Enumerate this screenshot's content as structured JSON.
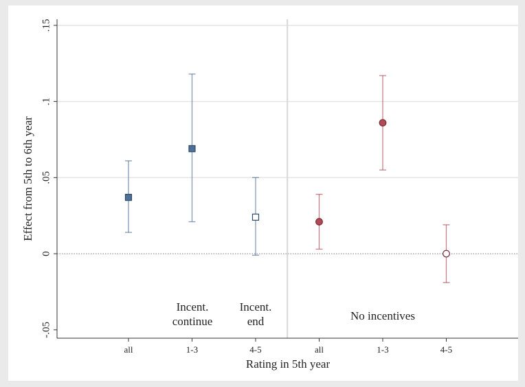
{
  "chart_data": {
    "type": "errorbar",
    "ylabel": "Effect from 5th to 6th year",
    "xlabel": "Rating in 5th year",
    "ylim": [
      -0.0555,
      0.154
    ],
    "yticks": [
      {
        "value": -0.05,
        "label": "-.05"
      },
      0,
      {
        "value": 0.05,
        "label": ".05"
      },
      {
        "value": 0.1,
        "label": ".1"
      },
      {
        "value": 0.15,
        "label": ".15"
      }
    ],
    "xlim": [
      -0.124,
      7.13
    ],
    "xticks": [
      {
        "value": 1,
        "label": "all"
      },
      {
        "value": 2,
        "label": "1-3"
      },
      {
        "value": 3,
        "label": "4-5"
      },
      {
        "value": 4,
        "label": "all"
      },
      {
        "value": 5,
        "label": "1-3"
      },
      {
        "value": 6,
        "label": "4-5"
      }
    ],
    "grid": true,
    "series": [
      {
        "color": "#4f6f96",
        "marker": "square",
        "x": [
          1,
          2,
          3
        ],
        "values": [
          0.037,
          0.069,
          0.024
        ],
        "lower": [
          0.014,
          0.021,
          -0.001
        ],
        "upper": [
          0.061,
          0.118,
          0.05
        ],
        "filled": [
          true,
          true,
          false
        ]
      },
      {
        "color": "#b04b57",
        "marker": "circle",
        "x": [
          4,
          5,
          6
        ],
        "values": [
          0.021,
          0.086,
          0.0
        ],
        "lower": [
          0.003,
          0.055,
          -0.019
        ],
        "upper": [
          0.039,
          0.117,
          0.019
        ],
        "filled": [
          true,
          true,
          false
        ]
      }
    ],
    "annotations": [
      [
        "Incent.",
        "continue"
      ],
      [
        "Incent.",
        "end"
      ],
      [
        "No incentives"
      ]
    ]
  }
}
